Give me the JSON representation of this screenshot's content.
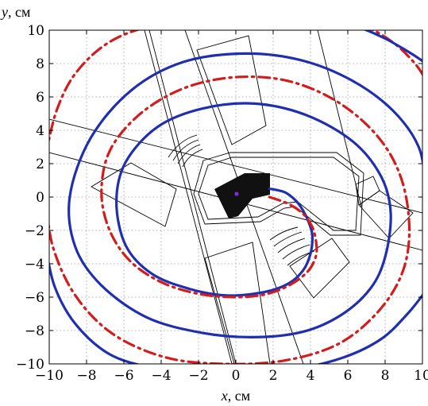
{
  "chart_data": {
    "type": "line",
    "title": "",
    "xlabel_var": "x",
    "xlabel_unit": ", см",
    "ylabel_var": "y",
    "ylabel_unit": ", см",
    "xlim": [
      -10,
      10
    ],
    "ylim": [
      -10,
      10
    ],
    "xticks": [
      -10,
      -8,
      -6,
      -4,
      -2,
      0,
      2,
      4,
      6,
      8,
      10
    ],
    "yticks": [
      -10,
      -8,
      -6,
      -4,
      -2,
      0,
      2,
      4,
      6,
      8,
      10
    ],
    "xtick_labels": [
      "−10",
      "−8",
      "−6",
      "−4",
      "−2",
      "0",
      "2",
      "4",
      "6",
      "8",
      "10"
    ],
    "ytick_labels": [
      "−10",
      "−8",
      "−6",
      "−4",
      "−2",
      "0",
      "2",
      "4",
      "6",
      "8",
      "10"
    ],
    "grid": true,
    "legend": "none",
    "series": [
      {
        "style": "solid",
        "color": "#1f2fb0",
        "x": [
          1.8,
          2.6,
          3.2,
          3.6,
          3.9,
          4.1,
          4.0,
          3.6,
          2.8,
          1.5,
          -0.5,
          -2.5,
          -4.5,
          -5.9,
          -6.4,
          -5.9,
          -4.2,
          -1.8,
          1.0,
          3.8,
          6.3,
          7.8,
          8.3,
          8.0,
          7.2,
          5.6,
          3.5,
          0.8,
          -2.0,
          -4.8,
          -7.2,
          -8.6,
          -8.9,
          -7.8,
          -5.6,
          -2.8,
          0.5,
          3.5,
          6.2,
          8.4,
          9.8,
          10.2
        ],
        "y": [
          0.5,
          0.3,
          -0.2,
          -0.8,
          -1.5,
          -2.3,
          -3.4,
          -4.4,
          -5.2,
          -5.7,
          -5.9,
          -5.5,
          -4.6,
          -2.9,
          -0.3,
          2.1,
          4.2,
          5.3,
          5.6,
          4.9,
          3.3,
          1.2,
          -1.0,
          -3.6,
          -5.5,
          -7.1,
          -8.1,
          -8.4,
          -8.1,
          -7.2,
          -5.3,
          -3.0,
          0.0,
          3.5,
          6.4,
          8.1,
          8.6,
          8.2,
          7.0,
          5.2,
          3.0,
          0.5
        ]
      },
      {
        "style": "dashdot",
        "color": "#d31d1d",
        "x": [
          1.8,
          2.8,
          3.6,
          4.1,
          4.3,
          4.3,
          3.9,
          3.0,
          1.7,
          0.0,
          -2.0,
          -4.0,
          -5.7,
          -6.8,
          -7.2,
          -6.7,
          -5.0,
          -2.6,
          0.2,
          3.0,
          5.6,
          7.7,
          8.9,
          9.3,
          8.9,
          7.6,
          5.5,
          2.6,
          -0.7,
          -3.8,
          -6.6,
          -8.6,
          -9.8,
          -10.2
        ],
        "y": [
          0.0,
          -0.4,
          -1.0,
          -1.8,
          -2.7,
          -3.5,
          -4.4,
          -5.2,
          -5.8,
          -6.0,
          -5.8,
          -5.1,
          -3.8,
          -1.9,
          0.4,
          2.9,
          5.1,
          6.6,
          7.2,
          6.9,
          5.6,
          3.5,
          1.0,
          -2.0,
          -4.6,
          -6.9,
          -8.8,
          -9.8,
          -10.0,
          -9.6,
          -8.2,
          -5.9,
          -3.0,
          0.0
        ]
      },
      {
        "style": "solid",
        "color": "#1f2fb0",
        "x": [
          -10.2,
          -9.7,
          -8.6,
          -6.8,
          -4.6,
          -2.2,
          0.5,
          3.2,
          5.8,
          7.8,
          9.2,
          10.2
        ],
        "y": [
          -3.0,
          -5.4,
          -7.6,
          -9.4,
          -10.2,
          -10.5,
          -10.5,
          -10.3,
          -9.6,
          -8.5,
          -7.0,
          -5.6
        ]
      },
      {
        "style": "dashdot",
        "color": "#d31d1d",
        "x": [
          -10.2,
          -9.6,
          -8.6,
          -6.9,
          -4.7,
          -2.0,
          0.5,
          2.6,
          4.4,
          5.4,
          6.0
        ],
        "y": [
          2.5,
          5.2,
          7.4,
          9.2,
          10.2,
          10.5,
          10.6,
          10.6,
          10.5,
          10.5,
          10.5
        ]
      },
      {
        "style": "dashdot",
        "color": "#d31d1d",
        "x": [
          5.6,
          7.0,
          8.5,
          9.6,
          10.2
        ],
        "y": [
          10.5,
          10.2,
          9.2,
          8.0,
          7.0
        ]
      },
      {
        "style": "solid",
        "color": "#1f2fb0",
        "x": [
          5.0,
          6.5,
          8.0,
          9.4,
          10.2
        ],
        "y": [
          10.5,
          10.2,
          9.5,
          8.6,
          8.0
        ]
      }
    ]
  }
}
